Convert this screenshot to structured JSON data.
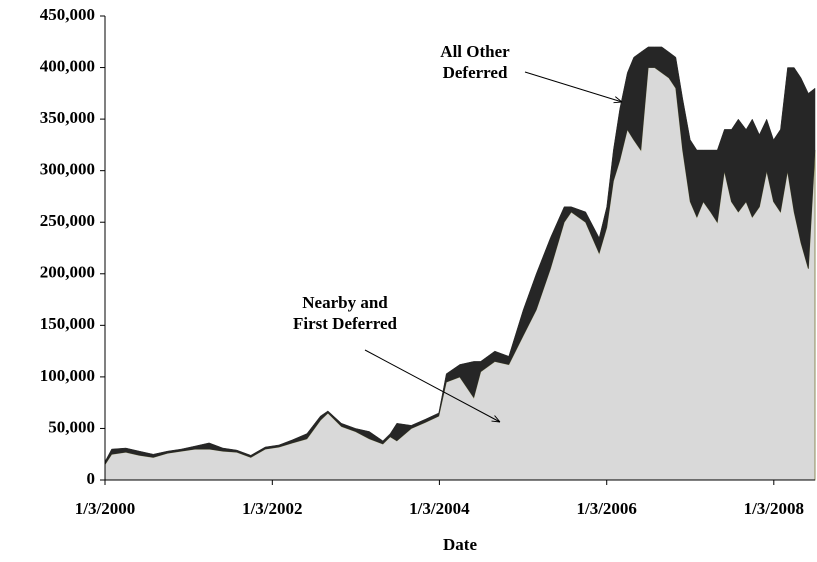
{
  "chart_data": {
    "type": "stacked_area",
    "x_label": "Date",
    "x": [
      "1/3/2000",
      "2/1/2000",
      "4/3/2000",
      "6/1/2000",
      "8/1/2000",
      "10/2/2000",
      "12/1/2000",
      "2/1/2001",
      "4/2/2001",
      "6/1/2001",
      "8/1/2001",
      "10/1/2001",
      "12/3/2001",
      "2/1/2002",
      "4/1/2002",
      "6/3/2002",
      "8/1/2002",
      "9/3/2002",
      "11/1/2002",
      "1/2/2003",
      "3/3/2003",
      "5/1/2003",
      "6/2/2003",
      "7/1/2003",
      "9/2/2003",
      "11/3/2003",
      "12/31/2003",
      "2/2/2004",
      "4/1/2004",
      "6/1/2004",
      "7/1/2004",
      "9/1/2004",
      "11/1/2004",
      "1/3/2005",
      "3/1/2005",
      "5/2/2005",
      "7/1/2005",
      "8/1/2005",
      "10/3/2005",
      "12/1/2005",
      "1/3/2006",
      "2/1/2006",
      "3/1/2006",
      "4/3/2006",
      "5/1/2006",
      "6/1/2006",
      "7/3/2006",
      "8/1/2006",
      "9/1/2006",
      "10/2/2006",
      "11/1/2006",
      "12/1/2006",
      "1/3/2007",
      "2/1/2007",
      "3/1/2007",
      "4/2/2007",
      "5/1/2007",
      "6/1/2007",
      "7/2/2007",
      "8/1/2007",
      "9/4/2007",
      "10/1/2007",
      "11/1/2007",
      "12/3/2007",
      "1/2/2008",
      "2/1/2008",
      "3/3/2008",
      "4/1/2008",
      "5/1/2008",
      "6/2/2008",
      "7/1/2008"
    ],
    "series": [
      {
        "name": "Nearby and First Deferred",
        "color": "#d9d9d9",
        "edge": "#8c8c5a",
        "values": [
          15000,
          25000,
          27000,
          24000,
          22000,
          26000,
          28000,
          30000,
          30000,
          28000,
          27000,
          22000,
          30000,
          32000,
          36000,
          40000,
          58000,
          65000,
          52000,
          47000,
          40000,
          35000,
          42000,
          38000,
          50000,
          56000,
          62000,
          95000,
          100000,
          80000,
          105000,
          115000,
          112000,
          140000,
          165000,
          205000,
          250000,
          260000,
          250000,
          220000,
          245000,
          290000,
          310000,
          340000,
          330000,
          320000,
          400000,
          400000,
          395000,
          390000,
          380000,
          320000,
          270000,
          255000,
          270000,
          260000,
          250000,
          300000,
          270000,
          260000,
          270000,
          255000,
          265000,
          300000,
          270000,
          260000,
          300000,
          260000,
          230000,
          205000,
          320000
        ]
      },
      {
        "name": "All Other Deferred",
        "color": "#262626",
        "values": [
          3000,
          5000,
          4000,
          4000,
          3000,
          2000,
          2000,
          3000,
          6000,
          3000,
          2000,
          2000,
          2000,
          2000,
          3000,
          5000,
          4000,
          2000,
          3000,
          3000,
          7000,
          3000,
          3000,
          17000,
          3000,
          3000,
          3000,
          8000,
          12000,
          35000,
          10000,
          10000,
          8000,
          25000,
          35000,
          30000,
          15000,
          5000,
          10000,
          15000,
          20000,
          30000,
          50000,
          55000,
          80000,
          95000,
          20000,
          20000,
          25000,
          25000,
          30000,
          50000,
          60000,
          65000,
          50000,
          60000,
          70000,
          40000,
          70000,
          90000,
          70000,
          95000,
          70000,
          50000,
          60000,
          80000,
          100000,
          140000,
          160000,
          170000,
          60000
        ]
      }
    ],
    "xlim": [
      "1/3/2000",
      "7/1/2008"
    ],
    "xticks": [
      "1/3/2000",
      "1/3/2002",
      "1/3/2004",
      "1/3/2006",
      "1/3/2008"
    ],
    "ylim": [
      0,
      450000
    ],
    "yticks": [
      0,
      {
        "value": 50000,
        "label": "50,000"
      },
      {
        "value": 100000,
        "label": "100,000"
      },
      {
        "value": 150000,
        "label": "150,000"
      },
      {
        "value": 200000,
        "label": "200,000"
      },
      {
        "value": 250000,
        "label": "250,000"
      },
      {
        "value": 300000,
        "label": "300,000"
      },
      {
        "value": 350000,
        "label": "350,000"
      },
      {
        "value": 400000,
        "label": "400,000"
      },
      {
        "value": 450000,
        "label": "450,000"
      }
    ],
    "grid": false
  }
}
